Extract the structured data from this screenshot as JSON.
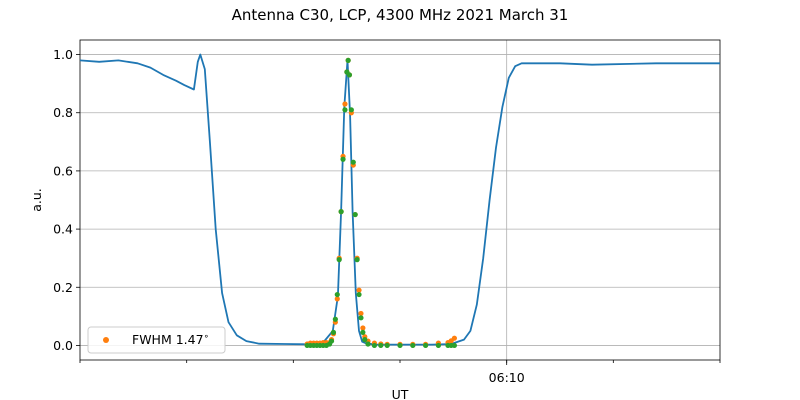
{
  "chart_data": {
    "type": "line",
    "title": "Antenna C30, LCP, 4300 MHz 2021 March 31",
    "xlabel": "UT",
    "ylabel": "a.u.",
    "xlim": [
      0,
      1
    ],
    "ylim": [
      -0.05,
      1.05
    ],
    "yticks": [
      0.0,
      0.2,
      0.4,
      0.6,
      0.8,
      1.0
    ],
    "ytick_labels": [
      "0.0",
      "0.2",
      "0.4",
      "0.6",
      "0.8",
      "1.0"
    ],
    "xtick_labels": [
      "06:10"
    ],
    "grid": true,
    "legend_position": "lower-left",
    "colors": {
      "line": "#1f77b4",
      "fit_orange": "#ff7f0e",
      "fit_green": "#2ca02c"
    },
    "series": [
      {
        "kind": "line",
        "x": [
          0.0,
          0.03,
          0.06,
          0.09,
          0.11,
          0.13,
          0.15,
          0.163,
          0.178,
          0.184,
          0.188,
          0.195,
          0.203,
          0.212,
          0.222,
          0.232,
          0.245,
          0.26,
          0.28,
          0.32,
          0.36,
          0.38,
          0.395,
          0.403,
          0.408,
          0.413,
          0.418,
          0.422,
          0.426,
          0.431,
          0.436,
          0.441,
          0.446,
          0.452,
          0.458,
          0.465,
          0.475,
          0.5,
          0.55,
          0.58,
          0.6,
          0.61,
          0.62,
          0.63,
          0.64,
          0.65,
          0.66,
          0.67,
          0.68,
          0.69,
          0.7,
          0.75,
          0.8,
          0.9,
          1.0
        ],
        "y": [
          0.98,
          0.975,
          0.98,
          0.97,
          0.955,
          0.93,
          0.91,
          0.895,
          0.88,
          0.975,
          1.0,
          0.95,
          0.7,
          0.4,
          0.18,
          0.08,
          0.035,
          0.015,
          0.006,
          0.005,
          0.004,
          0.01,
          0.05,
          0.17,
          0.46,
          0.82,
          0.98,
          0.79,
          0.46,
          0.18,
          0.05,
          0.013,
          0.008,
          0.006,
          0.004,
          0.003,
          0.003,
          0.003,
          0.003,
          0.005,
          0.02,
          0.05,
          0.14,
          0.3,
          0.5,
          0.68,
          0.82,
          0.92,
          0.96,
          0.97,
          0.97,
          0.97,
          0.965,
          0.97,
          0.97
        ]
      },
      {
        "kind": "scatter",
        "name": "FWHM 1.47$^\\circ$",
        "x": [
          0.355,
          0.36,
          0.365,
          0.37,
          0.375,
          0.38,
          0.385,
          0.39,
          0.393,
          0.396,
          0.399,
          0.402,
          0.405,
          0.408,
          0.411,
          0.414,
          0.417,
          0.419,
          0.421,
          0.424,
          0.427,
          0.43,
          0.433,
          0.436,
          0.439,
          0.442,
          0.445,
          0.45,
          0.46,
          0.47,
          0.48,
          0.5,
          0.52,
          0.54,
          0.56,
          0.575,
          0.58,
          0.585
        ],
        "y": [
          0.005,
          0.008,
          0.008,
          0.008,
          0.008,
          0.01,
          0.01,
          0.01,
          0.02,
          0.04,
          0.08,
          0.16,
          0.3,
          0.46,
          0.65,
          0.83,
          0.94,
          0.98,
          0.93,
          0.8,
          0.62,
          0.45,
          0.3,
          0.19,
          0.11,
          0.06,
          0.03,
          0.015,
          0.008,
          0.005,
          0.004,
          0.004,
          0.004,
          0.004,
          0.008,
          0.01,
          0.016,
          0.025
        ]
      },
      {
        "kind": "scatter",
        "x": [
          0.355,
          0.36,
          0.365,
          0.37,
          0.375,
          0.38,
          0.385,
          0.39,
          0.393,
          0.396,
          0.399,
          0.402,
          0.405,
          0.408,
          0.411,
          0.414,
          0.417,
          0.419,
          0.421,
          0.424,
          0.427,
          0.43,
          0.433,
          0.436,
          0.439,
          0.442,
          0.445,
          0.45,
          0.46,
          0.47,
          0.48,
          0.5,
          0.52,
          0.54,
          0.56,
          0.575,
          0.58,
          0.585
        ],
        "y": [
          0.0,
          0.0,
          0.0,
          0.0,
          0.0,
          0.0,
          0.0,
          0.005,
          0.015,
          0.045,
          0.09,
          0.175,
          0.295,
          0.46,
          0.64,
          0.81,
          0.94,
          0.98,
          0.93,
          0.81,
          0.63,
          0.45,
          0.295,
          0.175,
          0.095,
          0.045,
          0.02,
          0.005,
          0.0,
          0.0,
          0.0,
          0.0,
          0.0,
          0.0,
          0.0,
          0.0,
          0.0,
          0.0
        ]
      }
    ],
    "xtick_positions": [
      0.0,
      0.1667,
      0.3333,
      0.5,
      0.6667,
      0.8333,
      1.0
    ],
    "vline_x": 0.6667
  }
}
